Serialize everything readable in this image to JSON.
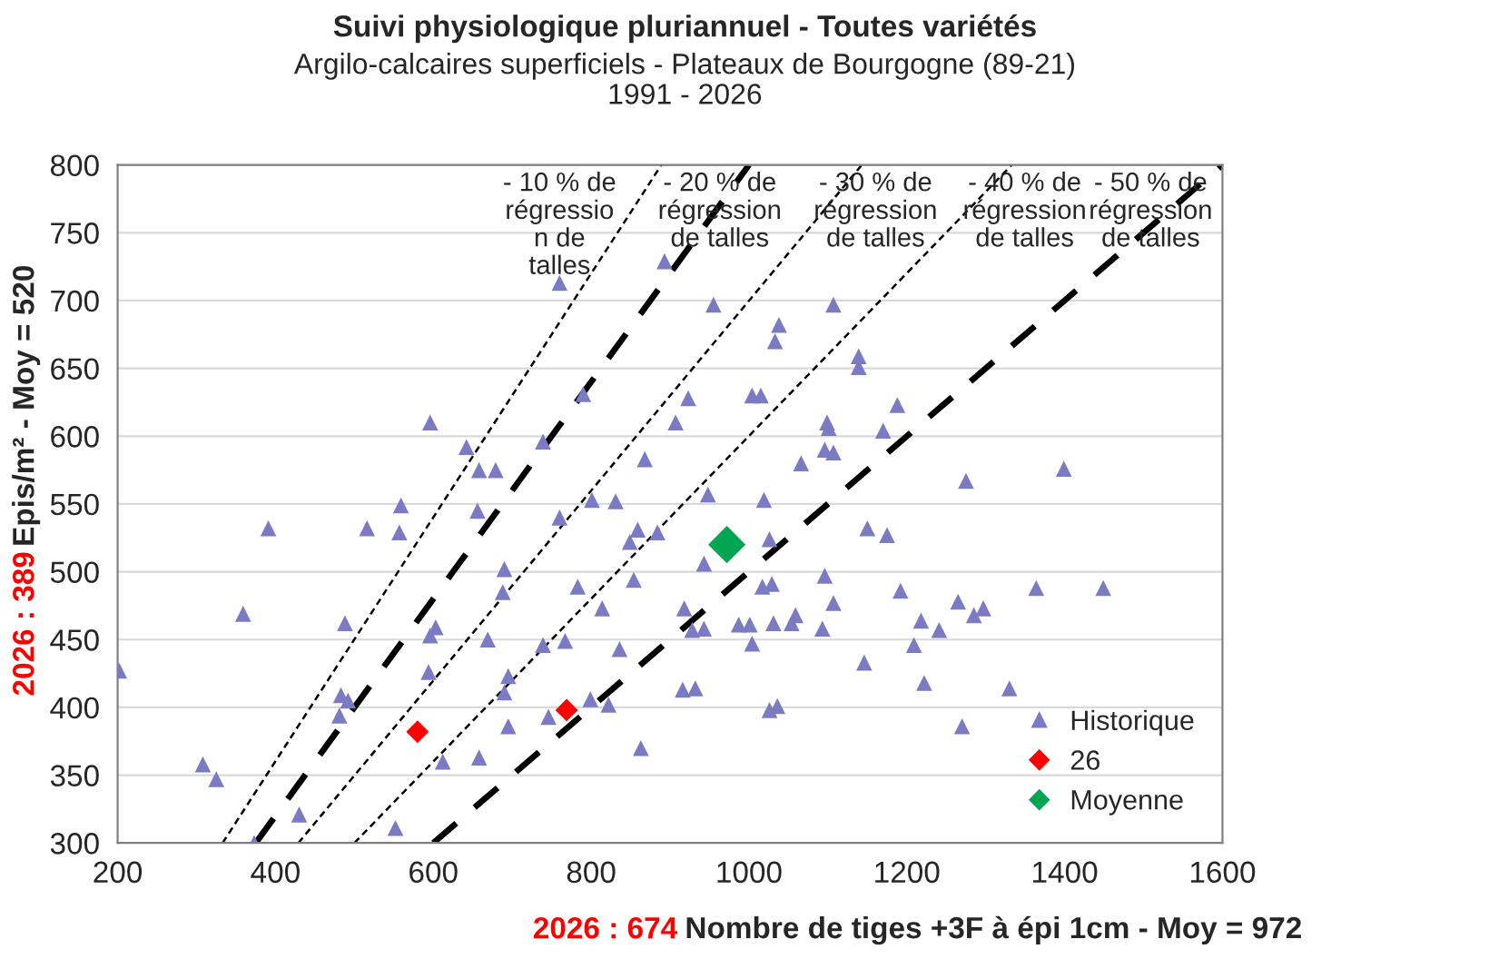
{
  "chart_data": {
    "type": "scatter",
    "title": "Suivi physiologique pluriannuel - Toutes variétés",
    "subtitle": "Argilo-calcaires superficiels - Plateaux de Bourgogne (89-21)\n1991 - 2026",
    "xlabel": "Nombre de tiges +3F à épi 1cm - Moy = 972",
    "ylabel": "Epis/m² - Moy = 520",
    "annotations": [
      "2026 : 674",
      "2026 : 389",
      "- 10 % de\nrégressio\nn de\ntalles",
      "- 20 % de\nrégression\nde talles",
      "- 30 % de\nrégression\nde talles",
      "- 40 % de\nrégression\nde talles",
      "- 50 % de\nrégression\nde talles"
    ],
    "series": [
      {
        "type": "line",
        "color": "#000000",
        "line_style": "dotted",
        "x": [
          333,
          889
        ],
        "values": [
          300,
          800
        ]
      },
      {
        "type": "line",
        "color": "#000000",
        "line_style": "dashed",
        "x": [
          375,
          1000
        ],
        "values": [
          300,
          800
        ]
      },
      {
        "type": "line",
        "color": "#000000",
        "line_style": "dotted",
        "x": [
          429,
          1143
        ],
        "values": [
          300,
          800
        ]
      },
      {
        "type": "line",
        "color": "#000000",
        "line_style": "dotted",
        "x": [
          500,
          1333
        ],
        "values": [
          300,
          800
        ]
      },
      {
        "type": "line",
        "color": "#000000",
        "line_style": "dashed",
        "x": [
          600,
          1600
        ],
        "values": [
          300,
          800
        ]
      },
      {
        "name": "Historique",
        "marker": "triangle",
        "color": "#7b7bc4",
        "x": [
          202,
          760,
          893,
          790,
          907,
          868,
          596,
          642,
          658,
          679,
          739,
          391,
          516,
          557,
          559,
          656,
          760,
          801,
          831,
          859,
          849,
          884,
          690,
          688,
          854,
          783,
          814,
          918,
          359,
          488,
          603,
          596,
          669,
          739,
          767,
          836,
          594,
          695,
          690,
          483,
          492,
          481,
          746,
          799,
          822,
          916,
          695,
          863,
          658,
          612,
          308,
          325,
          430,
          552,
          373,
          955,
          1107,
          1038,
          1033,
          1139,
          1139,
          923,
          1004,
          1015,
          1188,
          1099,
          1101,
          1170,
          1066,
          1096,
          1107,
          1275,
          1399,
          948,
          1019,
          943,
          1026,
          1150,
          1175,
          1096,
          1017,
          1029,
          1107,
          1192,
          1265,
          1364,
          1449,
          928,
          943,
          987,
          1001,
          1031,
          1054,
          1059,
          1093,
          1004,
          1218,
          1241,
          1285,
          1297,
          1209,
          1146,
          1222,
          1330,
          932,
          1026,
          1036,
          1270
        ],
        "values": [
          427,
          713,
          729,
          631,
          610,
          583,
          610,
          592,
          575,
          575,
          596,
          532,
          532,
          529,
          549,
          545,
          540,
          553,
          552,
          531,
          522,
          529,
          502,
          485,
          494,
          489,
          473,
          473,
          469,
          462,
          459,
          453,
          450,
          446,
          449,
          443,
          426,
          423,
          411,
          409,
          405,
          394,
          393,
          406,
          402,
          413,
          386,
          370,
          363,
          360,
          358,
          347,
          321,
          311,
          300,
          697,
          697,
          682,
          670,
          659,
          651,
          628,
          630,
          630,
          623,
          610,
          606,
          604,
          580,
          590,
          588,
          567,
          576,
          557,
          553,
          506,
          524,
          532,
          527,
          497,
          489,
          491,
          477,
          486,
          478,
          488,
          488,
          457,
          458,
          461,
          461,
          462,
          462,
          468,
          458,
          447,
          464,
          457,
          468,
          473,
          446,
          433,
          418,
          414,
          414,
          398,
          401,
          386
        ]
      },
      {
        "name": "26",
        "marker": "diamond",
        "color": "#ff0000",
        "x": [
          580,
          769
        ],
        "values": [
          382,
          398
        ]
      },
      {
        "name": "Moyenne",
        "marker": "diamond",
        "color": "#00a651",
        "x": [
          972
        ],
        "values": [
          520
        ]
      }
    ],
    "xlim": [
      200,
      1600
    ],
    "xticks": [
      200,
      400,
      600,
      800,
      1000,
      1200,
      1400,
      1600
    ],
    "ylim": [
      300,
      800
    ],
    "yticks": [
      300,
      350,
      400,
      450,
      500,
      550,
      600,
      650,
      700,
      750,
      800
    ],
    "grid": "y",
    "legend": "bottom right"
  }
}
